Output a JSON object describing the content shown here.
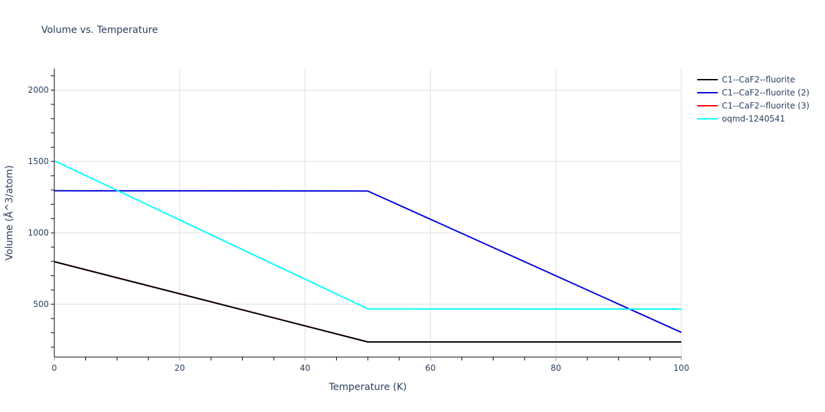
{
  "chart_data": {
    "type": "line",
    "title": "Volume vs. Temperature",
    "xlabel": "Temperature (K)",
    "ylabel": "Volume (Å^3/atom)",
    "xlim": [
      0,
      100
    ],
    "ylim": [
      130,
      2150
    ],
    "x_ticks": [
      0,
      20,
      40,
      60,
      80,
      100
    ],
    "y_ticks": [
      500,
      1000,
      1500,
      2000
    ],
    "grid": true,
    "legend_position": "right",
    "series": [
      {
        "name": "C1--CaF2--fluorite (3)",
        "color": "#ff0000",
        "x": [
          0,
          50,
          100
        ],
        "values": [
          798,
          236,
          236
        ]
      },
      {
        "name": "C1--CaF2--fluorite",
        "color": "#000000",
        "x": [
          0,
          50,
          100
        ],
        "values": [
          798,
          236,
          236
        ]
      },
      {
        "name": "C1--CaF2--fluorite (2)",
        "color": "#0000dd",
        "x": [
          0,
          50,
          100
        ],
        "values": [
          1295,
          1293,
          303
        ]
      },
      {
        "name": "oqmd-1240541",
        "color": "#00ffff",
        "x": [
          0,
          50,
          100
        ],
        "values": [
          1505,
          468,
          466
        ]
      }
    ]
  },
  "title": "Volume vs. Temperature",
  "legend": [
    {
      "label": "C1--CaF2--fluorite",
      "color": "#000000"
    },
    {
      "label": "C1--CaF2--fluorite (2)",
      "color": "#0000dd"
    },
    {
      "label": "C1--CaF2--fluorite (3)",
      "color": "#ff0000"
    },
    {
      "label": "oqmd-1240541",
      "color": "#00ffff"
    }
  ]
}
